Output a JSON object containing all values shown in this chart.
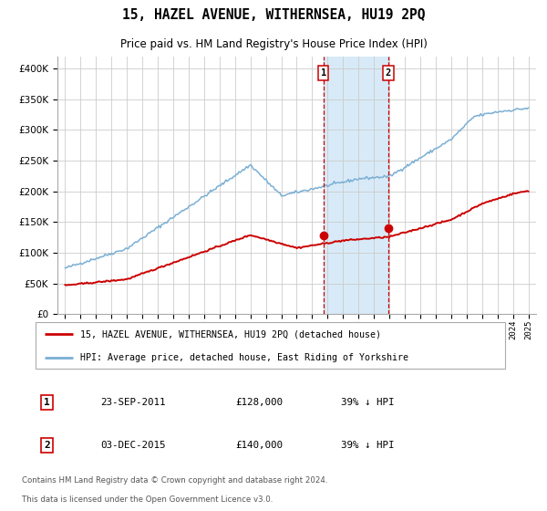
{
  "title": "15, HAZEL AVENUE, WITHERNSEA, HU19 2PQ",
  "subtitle": "Price paid vs. HM Land Registry's House Price Index (HPI)",
  "red_label": "15, HAZEL AVENUE, WITHERNSEA, HU19 2PQ (detached house)",
  "blue_label": "HPI: Average price, detached house, East Riding of Yorkshire",
  "transaction1": {
    "date": "23-SEP-2011",
    "price": 128000,
    "pct": "39% ↓ HPI",
    "label": "1"
  },
  "transaction2": {
    "date": "03-DEC-2015",
    "price": 140000,
    "pct": "39% ↓ HPI",
    "label": "2"
  },
  "footer1": "Contains HM Land Registry data © Crown copyright and database right 2024.",
  "footer2": "This data is licensed under the Open Government Licence v3.0.",
  "red_color": "#cc0000",
  "blue_color": "#7aafd4",
  "dashed_color": "#cc0000",
  "shaded_color": "#d8eaf7",
  "grid_color": "#cccccc",
  "background_color": "#ffffff",
  "ylim": [
    0,
    420000
  ],
  "yticks": [
    0,
    50000,
    100000,
    150000,
    200000,
    250000,
    300000,
    350000,
    400000
  ],
  "xstart_year": 1995,
  "xend_year": 2025
}
